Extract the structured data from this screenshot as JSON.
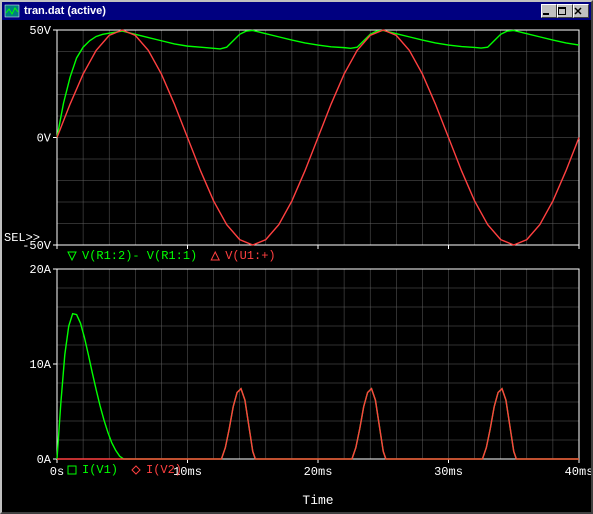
{
  "window": {
    "title": "tran.dat (active)",
    "minimize": "_",
    "maximize": "□",
    "close": "×"
  },
  "background_color": "#000000",
  "grid_color": "#606060",
  "axis_color": "#ffffff",
  "text_color": "#ffffff",
  "xlabel": "Time",
  "sel_label": "SEL>>",
  "xaxis": {
    "min": 0,
    "max": 40,
    "ticks": [
      0,
      10,
      20,
      30,
      40
    ],
    "tick_labels": [
      "0s",
      "10ms",
      "20ms",
      "30ms",
      "40ms"
    ],
    "minor_step": 2
  },
  "top_chart": {
    "type": "line",
    "ylim": [
      -50,
      50
    ],
    "yticks": [
      -50,
      0,
      50
    ],
    "ytick_labels": [
      "-50V",
      "0V",
      "50V"
    ],
    "minor_ystep": 10,
    "series": [
      {
        "name": "V(R1:2)- V(R1:1)",
        "color": "#00ff00",
        "marker": "triangle-down",
        "points": [
          [
            0,
            0
          ],
          [
            0.5,
            16
          ],
          [
            1,
            28
          ],
          [
            1.5,
            37
          ],
          [
            2,
            42
          ],
          [
            2.5,
            45
          ],
          [
            3,
            47
          ],
          [
            3.5,
            48
          ],
          [
            4,
            48.5
          ],
          [
            4.5,
            49
          ],
          [
            5,
            49.5
          ],
          [
            6,
            48
          ],
          [
            7,
            46.5
          ],
          [
            8,
            45
          ],
          [
            9,
            43.5
          ],
          [
            10,
            42.5
          ],
          [
            11,
            42
          ],
          [
            12,
            41.5
          ],
          [
            12.5,
            41.2
          ],
          [
            13,
            42
          ],
          [
            13.5,
            45
          ],
          [
            14,
            48
          ],
          [
            14.5,
            49.5
          ],
          [
            15,
            49.8
          ],
          [
            16,
            48.3
          ],
          [
            17,
            46.8
          ],
          [
            18,
            45.3
          ],
          [
            19,
            44
          ],
          [
            20,
            43
          ],
          [
            21,
            42.2
          ],
          [
            22,
            41.8
          ],
          [
            22.5,
            41.5
          ],
          [
            23,
            42
          ],
          [
            23.5,
            45
          ],
          [
            24,
            48
          ],
          [
            24.5,
            49.5
          ],
          [
            25,
            49.8
          ],
          [
            26,
            48.3
          ],
          [
            27,
            46.8
          ],
          [
            28,
            45.3
          ],
          [
            29,
            44
          ],
          [
            30,
            43
          ],
          [
            31,
            42.3
          ],
          [
            32,
            41.9
          ],
          [
            32.5,
            41.6
          ],
          [
            33,
            42
          ],
          [
            33.5,
            45
          ],
          [
            34,
            48
          ],
          [
            34.5,
            49.5
          ],
          [
            35,
            49.8
          ],
          [
            36,
            48.3
          ],
          [
            37,
            46.8
          ],
          [
            38,
            45.3
          ],
          [
            39,
            44
          ],
          [
            40,
            43
          ]
        ]
      },
      {
        "name": "V(U1:+)",
        "color": "#ff4040",
        "marker": "triangle-up",
        "points": [
          [
            0,
            0
          ],
          [
            1,
            15.5
          ],
          [
            2,
            29.5
          ],
          [
            3,
            40.5
          ],
          [
            4,
            47.5
          ],
          [
            5,
            50
          ],
          [
            6,
            47.5
          ],
          [
            7,
            40.5
          ],
          [
            8,
            29.5
          ],
          [
            9,
            15.5
          ],
          [
            10,
            0
          ],
          [
            11,
            -15.5
          ],
          [
            12,
            -29.5
          ],
          [
            13,
            -40.5
          ],
          [
            14,
            -47.5
          ],
          [
            15,
            -50
          ],
          [
            16,
            -47.5
          ],
          [
            17,
            -40.5
          ],
          [
            18,
            -29.5
          ],
          [
            19,
            -15.5
          ],
          [
            20,
            0
          ],
          [
            21,
            15.5
          ],
          [
            22,
            29.5
          ],
          [
            23,
            40.5
          ],
          [
            24,
            47.5
          ],
          [
            25,
            50
          ],
          [
            26,
            47.5
          ],
          [
            27,
            40.5
          ],
          [
            28,
            29.5
          ],
          [
            29,
            15.5
          ],
          [
            30,
            0
          ],
          [
            31,
            -15.5
          ],
          [
            32,
            -29.5
          ],
          [
            33,
            -40.5
          ],
          [
            34,
            -47.5
          ],
          [
            35,
            -50
          ],
          [
            36,
            -47.5
          ],
          [
            37,
            -40.5
          ],
          [
            38,
            -29.5
          ],
          [
            39,
            -15.5
          ],
          [
            40,
            0
          ]
        ]
      }
    ]
  },
  "bottom_chart": {
    "type": "line",
    "ylim": [
      0,
      20
    ],
    "yticks": [
      0,
      10,
      20
    ],
    "ytick_labels": [
      "0A",
      "10A",
      "20A"
    ],
    "minor_ystep": 2,
    "series": [
      {
        "name": "I(V1)",
        "color": "#00ff00",
        "marker": "square",
        "points": [
          [
            0,
            0
          ],
          [
            0.3,
            6
          ],
          [
            0.6,
            11
          ],
          [
            0.9,
            14
          ],
          [
            1.2,
            15.3
          ],
          [
            1.5,
            15.2
          ],
          [
            1.8,
            14.3
          ],
          [
            2.1,
            12.8
          ],
          [
            2.4,
            11
          ],
          [
            2.7,
            9.1
          ],
          [
            3,
            7.3
          ],
          [
            3.3,
            5.6
          ],
          [
            3.6,
            4.1
          ],
          [
            3.9,
            2.8
          ],
          [
            4.2,
            1.7
          ],
          [
            4.5,
            0.9
          ],
          [
            4.8,
            0.3
          ],
          [
            5.1,
            0
          ],
          [
            6,
            0
          ],
          [
            10,
            0
          ],
          [
            12.5,
            0
          ],
          [
            12.6,
            0
          ],
          [
            12.9,
            1.2
          ],
          [
            13.2,
            3.2
          ],
          [
            13.5,
            5.5
          ],
          [
            13.8,
            7
          ],
          [
            14.1,
            7.4
          ],
          [
            14.4,
            6.2
          ],
          [
            14.7,
            3.5
          ],
          [
            15,
            0.8
          ],
          [
            15.2,
            0
          ],
          [
            16,
            0
          ],
          [
            20,
            0
          ],
          [
            22.5,
            0
          ],
          [
            22.6,
            0
          ],
          [
            22.9,
            1.2
          ],
          [
            23.2,
            3.2
          ],
          [
            23.5,
            5.5
          ],
          [
            23.8,
            7
          ],
          [
            24.1,
            7.4
          ],
          [
            24.4,
            6.2
          ],
          [
            24.7,
            3.5
          ],
          [
            25,
            0.8
          ],
          [
            25.2,
            0
          ],
          [
            26,
            0
          ],
          [
            30,
            0
          ],
          [
            32.5,
            0
          ],
          [
            32.6,
            0
          ],
          [
            32.9,
            1.2
          ],
          [
            33.2,
            3.2
          ],
          [
            33.5,
            5.5
          ],
          [
            33.8,
            7
          ],
          [
            34.1,
            7.4
          ],
          [
            34.4,
            6.2
          ],
          [
            34.7,
            3.5
          ],
          [
            35,
            0.8
          ],
          [
            35.2,
            0
          ],
          [
            36,
            0
          ],
          [
            40,
            0
          ]
        ]
      },
      {
        "name": "I(V2)",
        "color": "#ff4040",
        "marker": "diamond",
        "points": [
          [
            0,
            0
          ],
          [
            5,
            0
          ],
          [
            10,
            0
          ],
          [
            12.5,
            0
          ],
          [
            12.6,
            0
          ],
          [
            12.9,
            1.2
          ],
          [
            13.2,
            3.2
          ],
          [
            13.5,
            5.5
          ],
          [
            13.8,
            7
          ],
          [
            14.1,
            7.4
          ],
          [
            14.4,
            6.2
          ],
          [
            14.7,
            3.5
          ],
          [
            15,
            0.8
          ],
          [
            15.2,
            0
          ],
          [
            16,
            0
          ],
          [
            20,
            0
          ],
          [
            22.5,
            0
          ],
          [
            22.6,
            0
          ],
          [
            22.9,
            1.2
          ],
          [
            23.2,
            3.2
          ],
          [
            23.5,
            5.5
          ],
          [
            23.8,
            7
          ],
          [
            24.1,
            7.4
          ],
          [
            24.4,
            6.2
          ],
          [
            24.7,
            3.5
          ],
          [
            25,
            0.8
          ],
          [
            25.2,
            0
          ],
          [
            26,
            0
          ],
          [
            30,
            0
          ],
          [
            32.5,
            0
          ],
          [
            32.6,
            0
          ],
          [
            32.9,
            1.2
          ],
          [
            33.2,
            3.2
          ],
          [
            33.5,
            5.5
          ],
          [
            33.8,
            7
          ],
          [
            34.1,
            7.4
          ],
          [
            34.4,
            6.2
          ],
          [
            34.7,
            3.5
          ],
          [
            35,
            0.8
          ],
          [
            35.2,
            0
          ],
          [
            36,
            0
          ],
          [
            40,
            0
          ]
        ]
      }
    ]
  }
}
